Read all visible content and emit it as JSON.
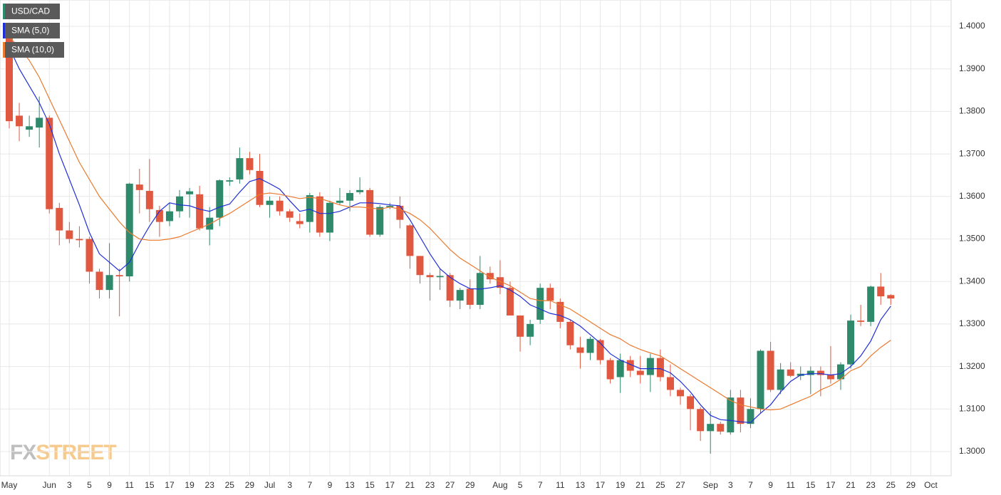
{
  "chart_data": {
    "type": "candlestick",
    "name": "USD/CAD",
    "watermark": [
      "FX",
      "STREET"
    ],
    "up_color": "#2f8a6c",
    "down_color": "#e0583f",
    "categories": [
      "May",
      null,
      null,
      null,
      "Jun",
      null,
      "3",
      null,
      "5",
      null,
      "9",
      null,
      "11",
      null,
      "15",
      null,
      "17",
      null,
      "19",
      null,
      "23",
      null,
      "25",
      null,
      "29",
      null,
      "Jul",
      null,
      "3",
      null,
      "7",
      null,
      "9",
      null,
      "13",
      null,
      "15",
      null,
      "17",
      null,
      "21",
      null,
      "23",
      null,
      "27",
      null,
      "29",
      null,
      null,
      "Aug",
      null,
      "5",
      null,
      "7",
      null,
      "11",
      null,
      "13",
      null,
      "17",
      null,
      "19",
      null,
      "21",
      null,
      "25",
      null,
      "27",
      null,
      null,
      "Sep",
      null,
      "3",
      null,
      "7",
      null,
      "9",
      null,
      "11",
      null,
      "15",
      null,
      "17",
      null,
      "21",
      null,
      "23",
      null,
      "25",
      null,
      "29",
      null,
      "Oct"
    ],
    "open": [
      1.3987,
      1.379,
      1.3757,
      1.3762,
      1.3785,
      1.3573,
      1.352,
      1.35,
      1.35,
      1.3423,
      1.338,
      1.3415,
      1.3412,
      1.3628,
      1.3613,
      1.3568,
      1.3542,
      1.3565,
      1.3605,
      1.3605,
      1.3522,
      1.355,
      1.3635,
      1.364,
      1.369,
      1.366,
      1.358,
      1.359,
      1.3565,
      1.3542,
      1.354,
      1.36,
      1.3515,
      1.3585,
      1.359,
      1.361,
      1.3615,
      1.351,
      1.3575,
      1.3578,
      1.3532,
      1.346,
      1.3415,
      1.341,
      1.3415,
      1.3355,
      1.3383,
      1.3345,
      1.342,
      1.341,
      1.3385,
      1.332,
      1.327,
      1.331,
      1.3385,
      1.3352,
      1.3305,
      1.3245,
      1.3232,
      1.3262,
      1.3215,
      1.3175,
      1.3215,
      1.319,
      1.318,
      1.322,
      1.3175,
      1.3145,
      1.313,
      1.31,
      1.3048,
      1.3065,
      1.3045,
      1.3127,
      1.3065,
      1.31,
      1.3237,
      1.3145,
      1.3193,
      1.3178,
      1.318,
      1.319,
      1.318,
      1.317,
      1.3205,
      1.3308,
      1.3305,
      1.3388,
      1.3368,
      null,
      null,
      null,
      null
    ],
    "high": [
      1.4,
      1.382,
      1.379,
      1.3835,
      1.379,
      1.3585,
      1.354,
      1.353,
      1.3505,
      1.343,
      1.349,
      1.343,
      1.3632,
      1.3665,
      1.3688,
      1.3578,
      1.3585,
      1.3615,
      1.362,
      1.3625,
      1.3575,
      1.364,
      1.3645,
      1.3715,
      1.3705,
      1.37,
      1.36,
      1.36,
      1.357,
      1.356,
      1.3608,
      1.361,
      1.359,
      1.362,
      1.3615,
      1.3645,
      1.362,
      1.358,
      1.3585,
      1.36,
      1.3535,
      1.346,
      1.342,
      1.343,
      1.342,
      1.3385,
      1.3405,
      1.346,
      1.3435,
      1.345,
      1.34,
      1.332,
      1.331,
      1.3395,
      1.3395,
      1.336,
      1.331,
      1.327,
      1.327,
      1.3265,
      1.322,
      1.323,
      1.3225,
      1.3225,
      1.323,
      1.324,
      1.3205,
      1.315,
      1.3135,
      1.3105,
      1.3095,
      1.307,
      1.3145,
      1.3145,
      1.3125,
      1.324,
      1.3258,
      1.3208,
      1.321,
      1.32,
      1.32,
      1.32,
      1.3248,
      1.321,
      1.3322,
      1.3345,
      1.339,
      1.342,
      1.337,
      null,
      null,
      null,
      null
    ],
    "low": [
      1.376,
      1.373,
      1.374,
      1.3715,
      1.356,
      1.3485,
      1.349,
      1.348,
      1.3395,
      1.336,
      1.336,
      1.3318,
      1.34,
      1.356,
      1.354,
      1.3505,
      1.353,
      1.355,
      1.355,
      1.352,
      1.3485,
      1.353,
      1.3625,
      1.363,
      1.3652,
      1.3575,
      1.355,
      1.3555,
      1.354,
      1.3525,
      1.3515,
      1.3505,
      1.3495,
      1.358,
      1.3565,
      1.3605,
      1.3505,
      1.3505,
      1.357,
      1.3525,
      1.343,
      1.3395,
      1.3355,
      1.338,
      1.334,
      1.3335,
      1.3335,
      1.3335,
      1.3395,
      1.337,
      1.332,
      1.3235,
      1.325,
      1.33,
      1.3335,
      1.329,
      1.324,
      1.3195,
      1.3215,
      1.3205,
      1.316,
      1.3138,
      1.3175,
      1.316,
      1.314,
      1.3165,
      1.313,
      1.311,
      1.305,
      1.3025,
      1.2995,
      1.304,
      1.304,
      1.3045,
      1.3055,
      1.309,
      1.314,
      1.3135,
      1.3175,
      1.3168,
      1.3135,
      1.313,
      1.316,
      1.3145,
      1.3195,
      1.3295,
      1.3295,
      1.3345,
      1.3345,
      null,
      null,
      null,
      null
    ],
    "close": [
      1.3777,
      1.3765,
      1.3765,
      1.3785,
      1.357,
      1.352,
      1.35,
      1.3497,
      1.3423,
      1.338,
      1.3415,
      1.3412,
      1.363,
      1.3615,
      1.357,
      1.354,
      1.3565,
      1.36,
      1.3612,
      1.3525,
      1.355,
      1.3638,
      1.3638,
      1.369,
      1.3662,
      1.358,
      1.359,
      1.3565,
      1.355,
      1.3535,
      1.3603,
      1.3515,
      1.3585,
      1.359,
      1.3608,
      1.3615,
      1.351,
      1.3575,
      1.3578,
      1.3545,
      1.346,
      1.3415,
      1.341,
      1.3413,
      1.3355,
      1.338,
      1.3345,
      1.342,
      1.3405,
      1.3385,
      1.332,
      1.327,
      1.33,
      1.3385,
      1.3355,
      1.3305,
      1.325,
      1.3232,
      1.3265,
      1.3215,
      1.317,
      1.3215,
      1.319,
      1.318,
      1.322,
      1.3175,
      1.3145,
      1.313,
      1.31,
      1.3048,
      1.3065,
      1.3047,
      1.3127,
      1.3065,
      1.31,
      1.3237,
      1.3145,
      1.3193,
      1.3178,
      1.3183,
      1.319,
      1.318,
      1.317,
      1.3205,
      1.3308,
      1.3305,
      1.3388,
      1.3365,
      1.336,
      null,
      null,
      null,
      null
    ],
    "overlays": [
      {
        "name": "SMA (5,0)",
        "color": "#1f2fd8",
        "values": [
          1.395,
          1.39,
          1.386,
          1.382,
          1.377,
          1.37,
          1.364,
          1.358,
          1.3515,
          1.3465,
          1.3445,
          1.3425,
          1.3445,
          1.349,
          1.353,
          1.3565,
          1.3585,
          1.358,
          1.3578,
          1.357,
          1.3565,
          1.3575,
          1.3582,
          1.361,
          1.3635,
          1.3642,
          1.363,
          1.3617,
          1.359,
          1.3565,
          1.357,
          1.356,
          1.356,
          1.3565,
          1.3575,
          1.3585,
          1.3585,
          1.3583,
          1.358,
          1.3578,
          1.3545,
          1.3505,
          1.3465,
          1.343,
          1.341,
          1.3395,
          1.3383,
          1.3382,
          1.3385,
          1.339,
          1.338,
          1.3365,
          1.3345,
          1.3335,
          1.3325,
          1.332,
          1.331,
          1.3295,
          1.3275,
          1.3255,
          1.323,
          1.3215,
          1.3205,
          1.3195,
          1.3195,
          1.3195,
          1.3185,
          1.3165,
          1.314,
          1.311,
          1.3085,
          1.3075,
          1.3073,
          1.307,
          1.3068,
          1.309,
          1.311,
          1.314,
          1.3165,
          1.318,
          1.3183,
          1.3183,
          1.318,
          1.3183,
          1.32,
          1.3225,
          1.326,
          1.331,
          1.3342,
          null,
          null,
          null,
          null
        ]
      },
      {
        "name": "SMA (10,0)",
        "color": "#ea7a2e",
        "values": [
          1.3975,
          1.395,
          1.392,
          1.388,
          1.383,
          1.378,
          1.373,
          1.368,
          1.364,
          1.36,
          1.357,
          1.354,
          1.3515,
          1.35,
          1.3497,
          1.3497,
          1.35,
          1.3505,
          1.3515,
          1.3525,
          1.3535,
          1.3548,
          1.356,
          1.3575,
          1.359,
          1.3605,
          1.3608,
          1.3605,
          1.36,
          1.3595,
          1.3598,
          1.3595,
          1.3588,
          1.358,
          1.3575,
          1.3575,
          1.3573,
          1.357,
          1.3575,
          1.357,
          1.356,
          1.3545,
          1.3525,
          1.35,
          1.3475,
          1.3455,
          1.344,
          1.3425,
          1.341,
          1.34,
          1.339,
          1.3375,
          1.336,
          1.3355,
          1.3355,
          1.3345,
          1.3335,
          1.332,
          1.3305,
          1.329,
          1.3275,
          1.3265,
          1.325,
          1.324,
          1.3232,
          1.3225,
          1.321,
          1.3195,
          1.318,
          1.3165,
          1.315,
          1.3135,
          1.312,
          1.311,
          1.3105,
          1.31,
          1.3098,
          1.31,
          1.311,
          1.312,
          1.313,
          1.3145,
          1.3155,
          1.317,
          1.319,
          1.32,
          1.3225,
          1.3245,
          1.3262,
          null,
          null,
          null,
          null
        ]
      }
    ],
    "ylim": [
      1.2943,
      1.4062
    ],
    "yticks": [
      {
        "value": 1.3,
        "label": "1.3000"
      },
      {
        "value": 1.31,
        "label": "1.3100"
      },
      {
        "value": 1.32,
        "label": "1.3200"
      },
      {
        "value": 1.33,
        "label": "1.3300"
      },
      {
        "value": 1.34,
        "label": "1.3400"
      },
      {
        "value": 1.35,
        "label": "1.3500"
      },
      {
        "value": 1.36,
        "label": "1.3600"
      },
      {
        "value": 1.37,
        "label": "1.3700"
      },
      {
        "value": 1.38,
        "label": "1.3800"
      },
      {
        "value": 1.39,
        "label": "1.3900"
      },
      {
        "value": 1.4,
        "label": "1.4000"
      }
    ],
    "grid": true
  }
}
